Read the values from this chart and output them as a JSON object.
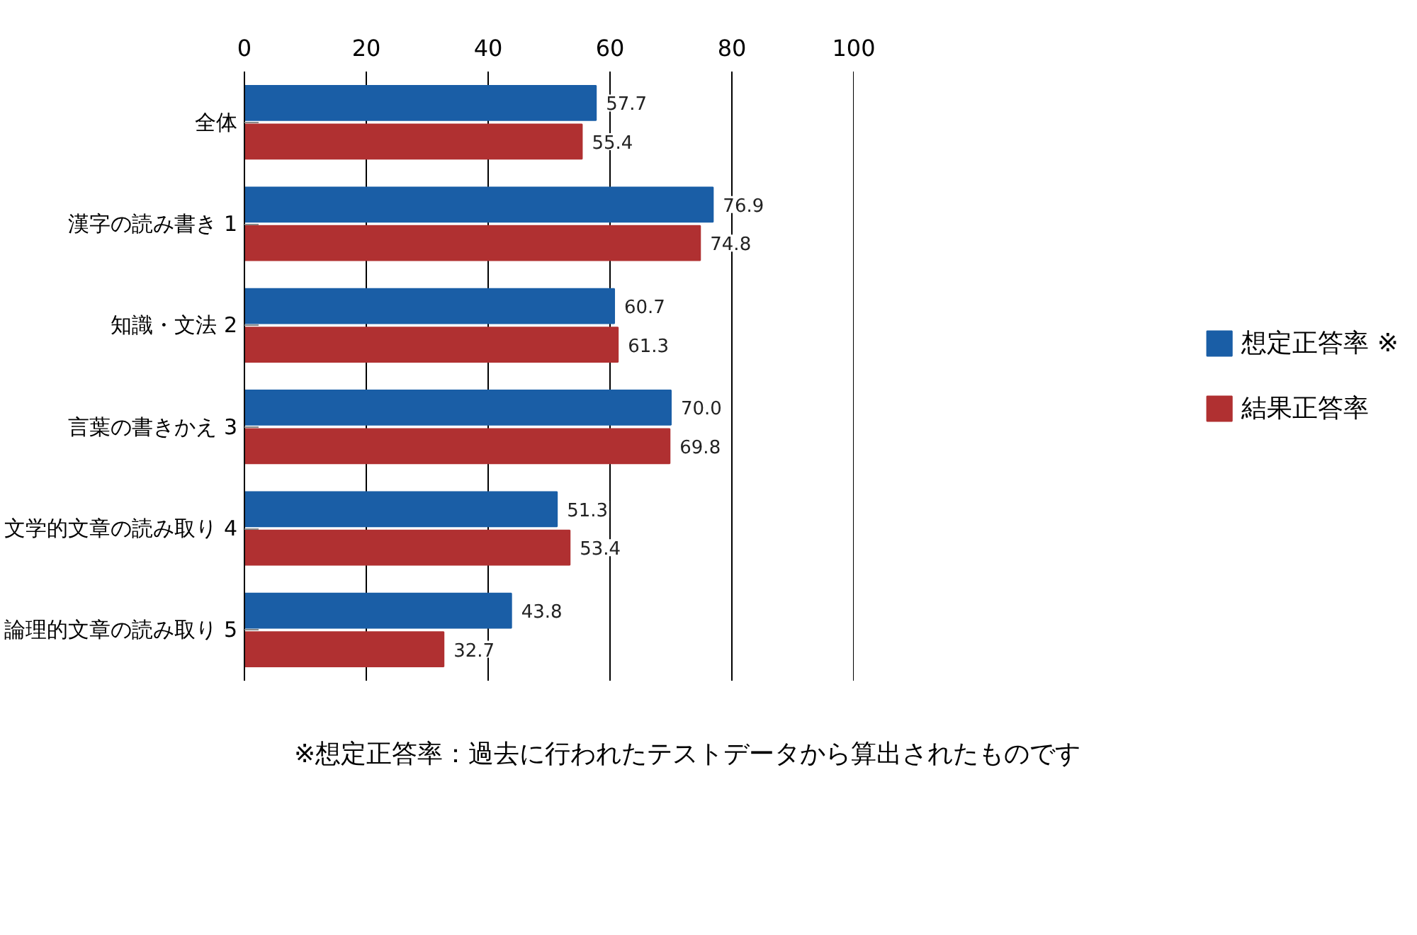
{
  "chart_data": {
    "type": "bar",
    "orientation": "horizontal",
    "categories": [
      "全体",
      "漢字の読み書き 1",
      "知識・文法 2",
      "言葉の書きかえ 3",
      "文学的文章の読み取り 4",
      "論理的文章の読み取り 5"
    ],
    "series": [
      {
        "name": "想定正答率 ※",
        "color": "#1a5ea6",
        "values": [
          57.7,
          76.9,
          60.7,
          70.0,
          51.3,
          43.8
        ]
      },
      {
        "name": "結果正答率",
        "color": "#b03031",
        "values": [
          55.4,
          74.8,
          61.3,
          69.8,
          53.4,
          32.7
        ]
      }
    ],
    "xlim": [
      0,
      100
    ],
    "xticks": [
      0,
      20,
      40,
      60,
      80,
      100
    ],
    "grid": "x",
    "legend": "right",
    "value_labels": [
      [
        "57.7",
        "76.9",
        "60.7",
        "70.0",
        "51.3",
        "43.8"
      ],
      [
        "55.4",
        "74.8",
        "61.3",
        "69.8",
        "53.4",
        "32.7"
      ]
    ],
    "annotations": [
      "※想定正答率：過去に行われたテストデータから算出されたものです"
    ]
  }
}
